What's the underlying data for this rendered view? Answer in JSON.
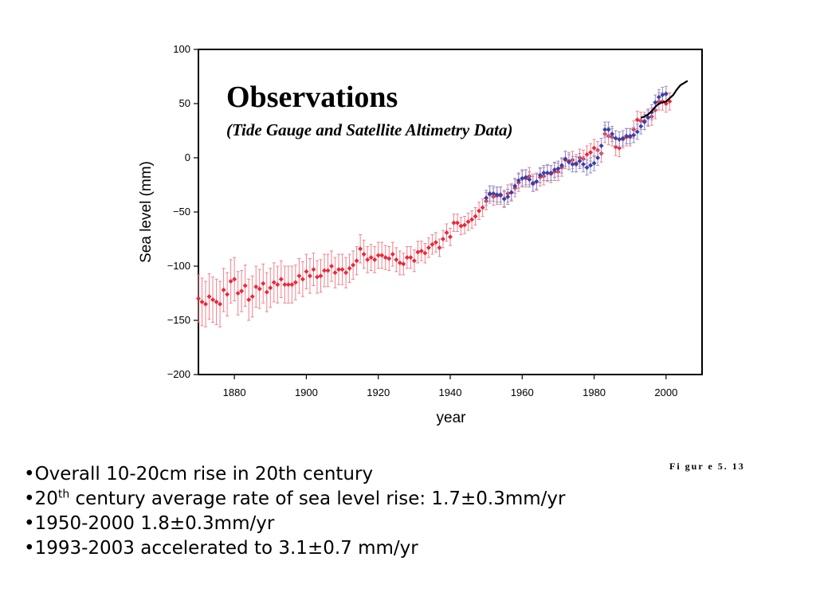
{
  "chart_data": {
    "type": "scatter",
    "title": "Observations",
    "subtitle": "(Tide Gauge and Satellite Altimetry Data)",
    "xlabel": "year",
    "ylabel": "Sea level (mm)",
    "xlim": [
      1870,
      2010
    ],
    "ylim": [
      -200,
      100
    ],
    "xticks": [
      "1880",
      "1900",
      "1920",
      "1940",
      "1960",
      "1980",
      "2000"
    ],
    "yticks": [
      "100",
      "50",
      "0",
      "−50",
      "−100",
      "−150",
      "−200"
    ],
    "grid": false,
    "series": [
      {
        "kind": "tide-gauge-red",
        "color": "#e8293b",
        "points": [
          [
            1870,
            -130,
            22
          ],
          [
            1871,
            -133,
            22
          ],
          [
            1872,
            -135,
            21
          ],
          [
            1873,
            -128,
            21
          ],
          [
            1874,
            -131,
            21
          ],
          [
            1875,
            -133,
            21
          ],
          [
            1876,
            -135,
            21
          ],
          [
            1877,
            -122,
            20
          ],
          [
            1878,
            -126,
            20
          ],
          [
            1879,
            -114,
            20
          ],
          [
            1880,
            -112,
            20
          ],
          [
            1881,
            -125,
            20
          ],
          [
            1882,
            -123,
            19
          ],
          [
            1883,
            -118,
            19
          ],
          [
            1884,
            -131,
            19
          ],
          [
            1885,
            -128,
            19
          ],
          [
            1886,
            -119,
            19
          ],
          [
            1887,
            -121,
            18
          ],
          [
            1888,
            -116,
            18
          ],
          [
            1889,
            -124,
            18
          ],
          [
            1890,
            -120,
            18
          ],
          [
            1891,
            -115,
            18
          ],
          [
            1892,
            -117,
            17
          ],
          [
            1893,
            -112,
            17
          ],
          [
            1894,
            -117,
            17
          ],
          [
            1895,
            -117,
            17
          ],
          [
            1896,
            -117,
            17
          ],
          [
            1897,
            -115,
            16
          ],
          [
            1898,
            -109,
            16
          ],
          [
            1899,
            -112,
            16
          ],
          [
            1900,
            -105,
            16
          ],
          [
            1901,
            -109,
            16
          ],
          [
            1902,
            -103,
            15
          ],
          [
            1903,
            -110,
            15
          ],
          [
            1904,
            -109,
            15
          ],
          [
            1905,
            -104,
            15
          ],
          [
            1906,
            -104,
            15
          ],
          [
            1907,
            -100,
            14
          ],
          [
            1908,
            -106,
            14
          ],
          [
            1909,
            -103,
            14
          ],
          [
            1910,
            -103,
            14
          ],
          [
            1911,
            -106,
            14
          ],
          [
            1912,
            -102,
            13
          ],
          [
            1913,
            -99,
            13
          ],
          [
            1914,
            -95,
            13
          ],
          [
            1915,
            -84,
            13
          ],
          [
            1916,
            -89,
            13
          ],
          [
            1917,
            -94,
            12
          ],
          [
            1918,
            -92,
            12
          ],
          [
            1919,
            -94,
            12
          ],
          [
            1920,
            -90,
            12
          ],
          [
            1921,
            -90,
            12
          ],
          [
            1922,
            -92,
            11
          ],
          [
            1923,
            -93,
            11
          ],
          [
            1924,
            -89,
            11
          ],
          [
            1925,
            -94,
            11
          ],
          [
            1926,
            -97,
            11
          ],
          [
            1927,
            -98,
            10
          ],
          [
            1928,
            -92,
            10
          ],
          [
            1929,
            -92,
            10
          ],
          [
            1930,
            -95,
            10
          ],
          [
            1931,
            -87,
            10
          ],
          [
            1932,
            -86,
            9
          ],
          [
            1933,
            -88,
            9
          ],
          [
            1934,
            -83,
            9
          ],
          [
            1935,
            -80,
            9
          ],
          [
            1936,
            -78,
            9
          ],
          [
            1937,
            -83,
            8
          ],
          [
            1938,
            -75,
            8
          ],
          [
            1939,
            -69,
            8
          ],
          [
            1940,
            -73,
            8
          ],
          [
            1941,
            -60,
            8
          ],
          [
            1942,
            -60,
            8
          ],
          [
            1943,
            -63,
            8
          ],
          [
            1944,
            -62,
            8
          ],
          [
            1945,
            -59,
            8
          ],
          [
            1946,
            -57,
            8
          ],
          [
            1947,
            -54,
            8
          ],
          [
            1948,
            -49,
            8
          ],
          [
            1949,
            -46,
            8
          ],
          [
            1950,
            -40,
            8
          ],
          [
            1951,
            -34,
            8
          ],
          [
            1952,
            -36,
            8
          ],
          [
            1953,
            -35,
            8
          ],
          [
            1954,
            -35,
            8
          ],
          [
            1955,
            -38,
            8
          ],
          [
            1956,
            -33,
            8
          ],
          [
            1957,
            -32,
            8
          ],
          [
            1958,
            -28,
            8
          ],
          [
            1959,
            -23,
            8
          ],
          [
            1960,
            -19,
            8
          ],
          [
            1961,
            -19,
            8
          ],
          [
            1962,
            -17,
            8
          ],
          [
            1963,
            -23,
            8
          ],
          [
            1964,
            -22,
            8
          ],
          [
            1965,
            -18,
            8
          ],
          [
            1966,
            -17,
            8
          ],
          [
            1967,
            -14,
            8
          ],
          [
            1968,
            -15,
            8
          ],
          [
            1969,
            -13,
            8
          ],
          [
            1970,
            -13,
            8
          ],
          [
            1971,
            -9,
            8
          ],
          [
            1972,
            -2,
            8
          ],
          [
            1973,
            -3,
            8
          ],
          [
            1974,
            -2,
            8
          ],
          [
            1975,
            -5,
            8
          ],
          [
            1976,
            0,
            8
          ],
          [
            1977,
            -1,
            8
          ],
          [
            1978,
            3,
            8
          ],
          [
            1979,
            5,
            8
          ],
          [
            1980,
            9,
            8
          ],
          [
            1981,
            7,
            8
          ],
          [
            1982,
            4,
            8
          ],
          [
            1983,
            22,
            8
          ],
          [
            1984,
            20,
            8
          ],
          [
            1985,
            19,
            8
          ],
          [
            1986,
            10,
            8
          ],
          [
            1987,
            9,
            8
          ],
          [
            1988,
            17,
            8
          ],
          [
            1989,
            19,
            8
          ],
          [
            1990,
            19,
            8
          ],
          [
            1991,
            26,
            8
          ],
          [
            1992,
            35,
            8
          ],
          [
            1993,
            34,
            8
          ],
          [
            1994,
            34,
            8
          ],
          [
            1995,
            37,
            8
          ],
          [
            1996,
            38,
            8
          ],
          [
            1997,
            44,
            8
          ],
          [
            1998,
            52,
            8
          ],
          [
            1999,
            52,
            8
          ],
          [
            2000,
            50,
            8
          ],
          [
            2001,
            52,
            8
          ]
        ]
      },
      {
        "kind": "tide-gauge-blue",
        "color": "#3b3fa6",
        "points": [
          [
            1950,
            -37,
            7
          ],
          [
            1951,
            -33,
            7
          ],
          [
            1952,
            -33,
            7
          ],
          [
            1953,
            -34,
            7
          ],
          [
            1954,
            -34,
            7
          ],
          [
            1955,
            -38,
            7
          ],
          [
            1956,
            -36,
            7
          ],
          [
            1957,
            -32,
            7
          ],
          [
            1958,
            -26,
            7
          ],
          [
            1959,
            -21,
            7
          ],
          [
            1960,
            -19,
            7
          ],
          [
            1961,
            -18,
            7
          ],
          [
            1962,
            -20,
            7
          ],
          [
            1963,
            -24,
            7
          ],
          [
            1964,
            -22,
            7
          ],
          [
            1965,
            -16,
            7
          ],
          [
            1966,
            -14,
            7
          ],
          [
            1967,
            -14,
            7
          ],
          [
            1968,
            -14,
            7
          ],
          [
            1969,
            -11,
            7
          ],
          [
            1970,
            -10,
            7
          ],
          [
            1971,
            -7,
            7
          ],
          [
            1972,
            -1,
            7
          ],
          [
            1973,
            -4,
            7
          ],
          [
            1974,
            -6,
            7
          ],
          [
            1975,
            -6,
            7
          ],
          [
            1976,
            -3,
            7
          ],
          [
            1977,
            -6,
            7
          ],
          [
            1978,
            -9,
            7
          ],
          [
            1979,
            -7,
            7
          ],
          [
            1980,
            -5,
            7
          ],
          [
            1981,
            0,
            7
          ],
          [
            1982,
            11,
            7
          ],
          [
            1983,
            26,
            7
          ],
          [
            1984,
            26,
            7
          ],
          [
            1985,
            22,
            7
          ],
          [
            1986,
            18,
            7
          ],
          [
            1987,
            17,
            7
          ],
          [
            1988,
            18,
            7
          ],
          [
            1989,
            20,
            7
          ],
          [
            1990,
            20,
            7
          ],
          [
            1991,
            21,
            7
          ],
          [
            1992,
            24,
            7
          ],
          [
            1993,
            29,
            7
          ],
          [
            1994,
            33,
            7
          ],
          [
            1995,
            37,
            7
          ],
          [
            1996,
            42,
            7
          ],
          [
            1997,
            51,
            7
          ],
          [
            1998,
            56,
            7
          ],
          [
            1999,
            58,
            7
          ],
          [
            2000,
            59,
            7
          ]
        ]
      },
      {
        "kind": "satellite-altimetry",
        "color": "#000000",
        "points": [
          [
            1993,
            37
          ],
          [
            1994,
            38
          ],
          [
            1995,
            40
          ],
          [
            1996,
            43
          ],
          [
            1997,
            47
          ],
          [
            1998,
            50
          ],
          [
            1999,
            51
          ],
          [
            2000,
            52
          ],
          [
            2001,
            55
          ],
          [
            2002,
            58
          ],
          [
            2003,
            63
          ],
          [
            2004,
            67
          ],
          [
            2005,
            69
          ],
          [
            2006,
            71
          ]
        ]
      }
    ]
  },
  "bullets": [
    {
      "prefix": "•",
      "text": "Overall 10-20cm rise in 20th century"
    },
    {
      "prefix": "•20",
      "sup": "th",
      "text": " century average rate of sea level rise: 1.7±0.3mm/yr"
    },
    {
      "prefix": "•",
      "text": "1950-2000 1.8±0.3mm/yr"
    },
    {
      "prefix": "•",
      "text": "1993-2003 accelerated to 3.1±0.7 mm/yr"
    }
  ],
  "figure_label": "Fi gur e  5. 13"
}
